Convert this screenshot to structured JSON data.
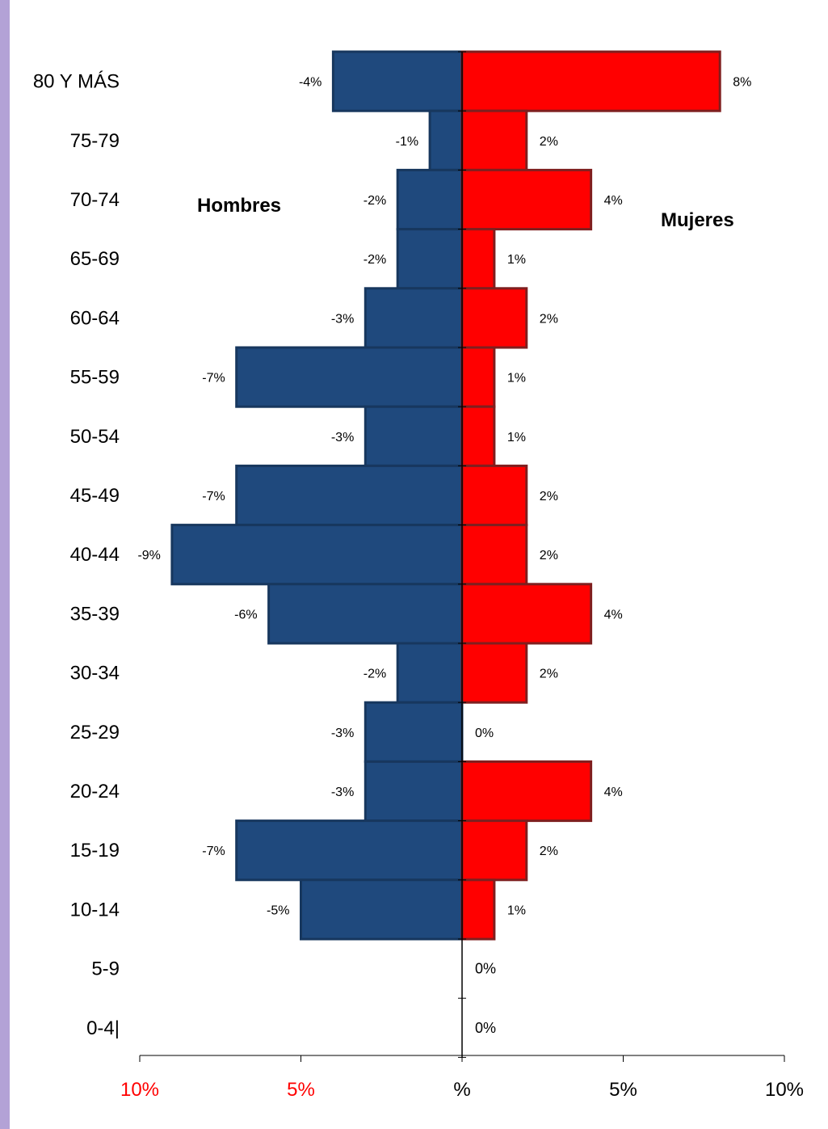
{
  "chart_data": {
    "type": "bar",
    "orientation": "horizontal",
    "categories": [
      "80 Y MÁS",
      "75-79",
      "70-74",
      "65-69",
      "60-64",
      "55-59",
      "50-54",
      "45-49",
      "40-44",
      "35-39",
      "30-34",
      "25-29",
      "20-24",
      "15-19",
      "10-14",
      "5-9",
      "0-4|"
    ],
    "series": [
      {
        "name": "Hombres",
        "color": "#1f497d",
        "values": [
          -4,
          -1,
          -2,
          -2,
          -3,
          -7,
          -3,
          -7,
          -9,
          -6,
          -2,
          -3,
          -3,
          -7,
          -5,
          null,
          null
        ],
        "labels": [
          "-4%",
          "-1%",
          "-2%",
          "-2%",
          "-3%",
          "-7%",
          "-3%",
          "-7%",
          "-9%",
          "-6%",
          "-2%",
          "-3%",
          "-3%",
          "-7%",
          "-5%",
          "",
          ""
        ]
      },
      {
        "name": "Mujeres",
        "color": "#ff0000",
        "values": [
          8,
          2,
          4,
          1,
          2,
          1,
          1,
          2,
          2,
          4,
          2,
          0,
          4,
          2,
          1,
          0,
          0
        ],
        "labels": [
          "8%",
          "2%",
          "4%",
          "1%",
          "2%",
          "1%",
          "1%",
          "2%",
          "2%",
          "4%",
          "2%",
          "0%",
          "4%",
          "2%",
          "1%",
          "0%",
          "0%"
        ]
      }
    ],
    "xlim": [
      -10,
      10
    ],
    "xticks": [
      {
        "value": -10,
        "label": "10%",
        "color": "#ff0000"
      },
      {
        "value": -5,
        "label": "5%",
        "color": "#ff0000"
      },
      {
        "value": 0,
        "label": "%",
        "color": "#000000"
      },
      {
        "value": 5,
        "label": "5%",
        "color": "#000000"
      },
      {
        "value": 10,
        "label": "10%",
        "color": "#000000"
      }
    ],
    "annotations": [
      "Hombres",
      "Mujeres"
    ],
    "grid": false,
    "legend": "none"
  }
}
